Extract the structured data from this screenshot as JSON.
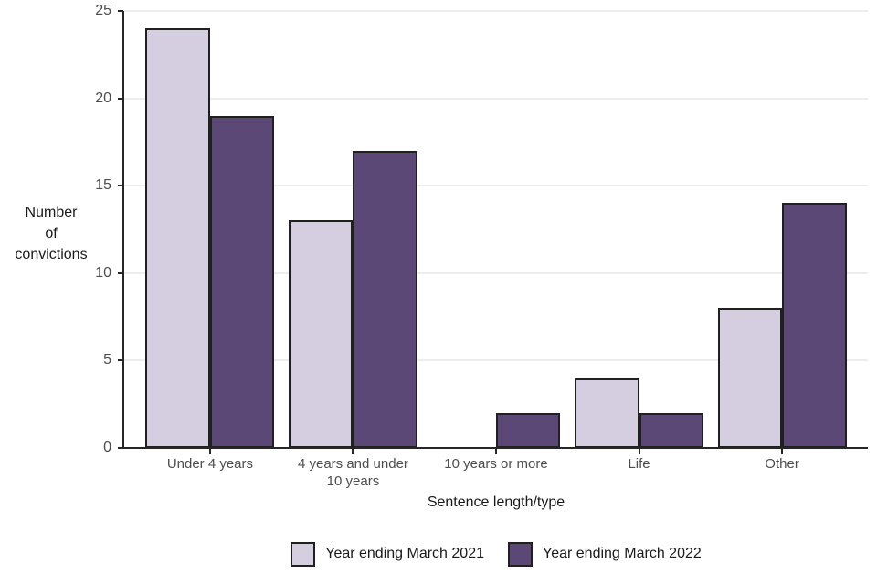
{
  "chart_data": {
    "type": "bar",
    "title": "",
    "categories": [
      "Under 4 years",
      "4 years and under\n10 years",
      "10 years or more",
      "Life",
      "Other"
    ],
    "series": [
      {
        "name": "Year ending March 2021",
        "color": "#d5cee1",
        "values": [
          24,
          13,
          0,
          4,
          8
        ]
      },
      {
        "name": "Year ending March 2022",
        "color": "#5b4877",
        "values": [
          19,
          17,
          2,
          2,
          14
        ]
      }
    ],
    "xlabel": "Sentence length/type",
    "ylabel": "Number\nof\nconvictions",
    "ylim": [
      0,
      25
    ],
    "yticks": [
      0,
      5,
      10,
      15,
      20,
      25
    ],
    "grid": "horizontal-major-only",
    "legend_position": "bottom-center",
    "bar_orientation": "vertical-grouped",
    "colors": {
      "series_2021": "#d5cee1",
      "series_2022": "#5b4877",
      "bar_border": "#202020",
      "gridline": "#ededed",
      "axis_line": "#262626",
      "tick_label": "#4d4d4d",
      "axis_title": "#1a1a1a",
      "background": "#ffffff"
    }
  }
}
